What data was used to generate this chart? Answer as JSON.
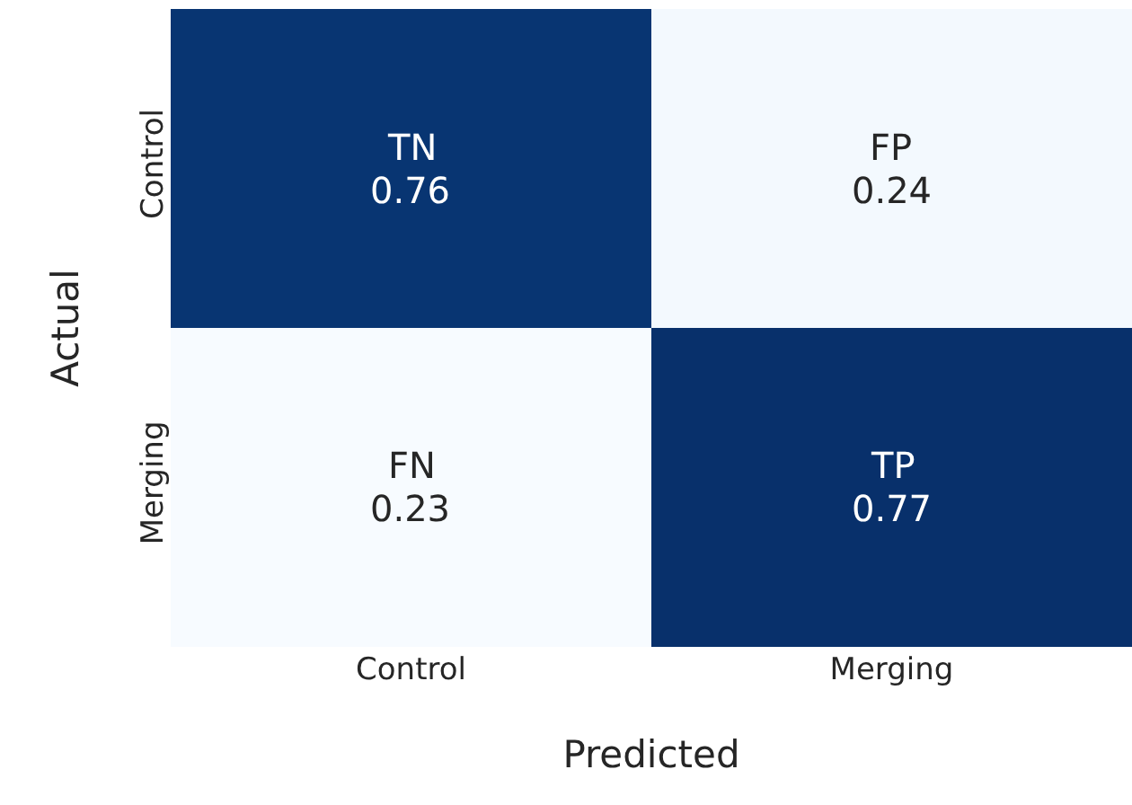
{
  "chart_data": {
    "type": "heatmap",
    "xlabel": "Predicted",
    "ylabel": "Actual",
    "categories": [
      "Control",
      "Merging"
    ],
    "y_categories": [
      "Control",
      "Merging"
    ],
    "cells": [
      [
        0.76,
        0.24
      ],
      [
        0.23,
        0.77
      ]
    ],
    "data_labels": true,
    "annotations": [
      "TN",
      "FP",
      "FN",
      "TP"
    ]
  }
}
